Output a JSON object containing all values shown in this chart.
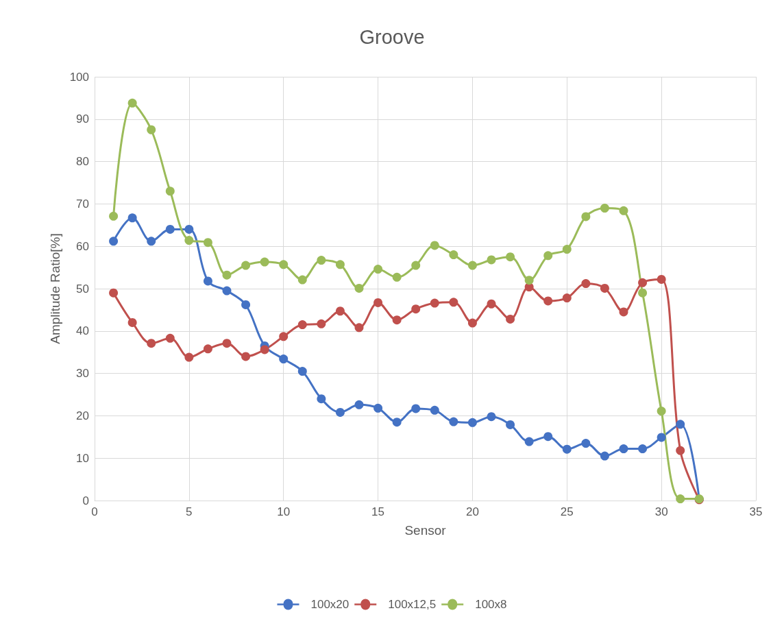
{
  "chart_data": {
    "type": "line",
    "title": "Groove",
    "xlabel": "Sensor",
    "ylabel": "Amplitude Ratio[%]",
    "x": [
      1,
      2,
      3,
      4,
      5,
      6,
      7,
      8,
      9,
      10,
      11,
      12,
      13,
      14,
      15,
      16,
      17,
      18,
      19,
      20,
      21,
      22,
      23,
      24,
      25,
      26,
      27,
      28,
      29,
      30,
      31,
      32
    ],
    "series": [
      {
        "name": "100x20",
        "color": "#4472c4",
        "values": [
          61.2,
          66.7,
          61.2,
          64,
          64,
          51.8,
          49.5,
          46.2,
          36.5,
          33.4,
          30.5,
          24,
          20.8,
          22.6,
          21.8,
          18.5,
          21.7,
          21.3,
          18.6,
          18.4,
          19.8,
          17.9,
          13.9,
          15.1,
          12.1,
          13.5,
          10.5,
          12.2,
          12.2,
          14.9,
          18,
          0.3
        ]
      },
      {
        "name": "100x12,5",
        "color": "#c0504d",
        "values": [
          49,
          42,
          37.1,
          38.3,
          33.8,
          35.8,
          37.1,
          34,
          35.6,
          38.7,
          41.5,
          41.7,
          44.7,
          40.8,
          46.7,
          42.6,
          45.2,
          46.6,
          46.8,
          41.9,
          46.4,
          42.8,
          50.4,
          47.1,
          47.8,
          51.2,
          50.1,
          44.5,
          51.4,
          52.2,
          11.8,
          0.2
        ]
      },
      {
        "name": "100x8",
        "color": "#9bbb59",
        "values": [
          67.1,
          93.8,
          87.5,
          73,
          61.4,
          60.9,
          53.2,
          55.5,
          56.3,
          55.7,
          52.1,
          56.7,
          55.7,
          50.1,
          54.6,
          52.7,
          55.5,
          60.2,
          58,
          55.5,
          56.8,
          57.5,
          52,
          57.8,
          59.3,
          67,
          69,
          68.4,
          49,
          21.1,
          0.4,
          0.4
        ]
      }
    ],
    "xlim": [
      0,
      35
    ],
    "xticks": [
      0,
      5,
      10,
      15,
      20,
      25,
      30,
      35
    ],
    "ylim": [
      0,
      100
    ],
    "yticks": [
      0,
      10,
      20,
      30,
      40,
      50,
      60,
      70,
      80,
      90,
      100
    ],
    "grid": true,
    "legend": "bottom",
    "marker": "circle",
    "line_style": "solid"
  }
}
